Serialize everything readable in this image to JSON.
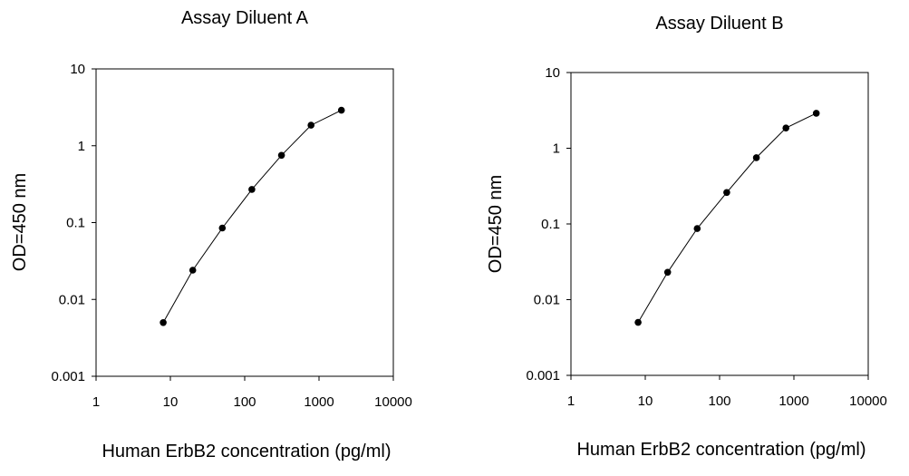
{
  "chart_data": [
    {
      "type": "line",
      "title": "Assay Diluent A",
      "xlabel": "Human ErbB2 concentration (pg/ml)",
      "ylabel": "OD=450 nm",
      "xscale": "log",
      "yscale": "log",
      "xlim": [
        1,
        10000
      ],
      "ylim": [
        0.001,
        10
      ],
      "x_ticks": [
        "1",
        "10",
        "100",
        "1000",
        "10000"
      ],
      "y_ticks": [
        "10",
        "1",
        "0.1",
        "0.01",
        "0.001"
      ],
      "grid": false,
      "series": [
        {
          "x": [
            8,
            20,
            50,
            125,
            312.5,
            781,
            2000
          ],
          "values": [
            0.005,
            0.024,
            0.085,
            0.27,
            0.75,
            1.85,
            2.9
          ]
        }
      ]
    },
    {
      "type": "line",
      "title": "Assay Diluent B",
      "xlabel": "Human ErbB2 concentration (pg/ml)",
      "ylabel": "OD=450 nm",
      "xscale": "log",
      "yscale": "log",
      "xlim": [
        1,
        10000
      ],
      "ylim": [
        0.001,
        10
      ],
      "x_ticks": [
        "1",
        "10",
        "100",
        "1000",
        "10000"
      ],
      "y_ticks": [
        "10",
        "1",
        "0.1",
        "0.01",
        "0.001"
      ],
      "grid": false,
      "series": [
        {
          "x": [
            8,
            20,
            50,
            125,
            312.5,
            781,
            2000
          ],
          "values": [
            0.005,
            0.023,
            0.087,
            0.26,
            0.75,
            1.85,
            2.9
          ]
        }
      ]
    }
  ]
}
